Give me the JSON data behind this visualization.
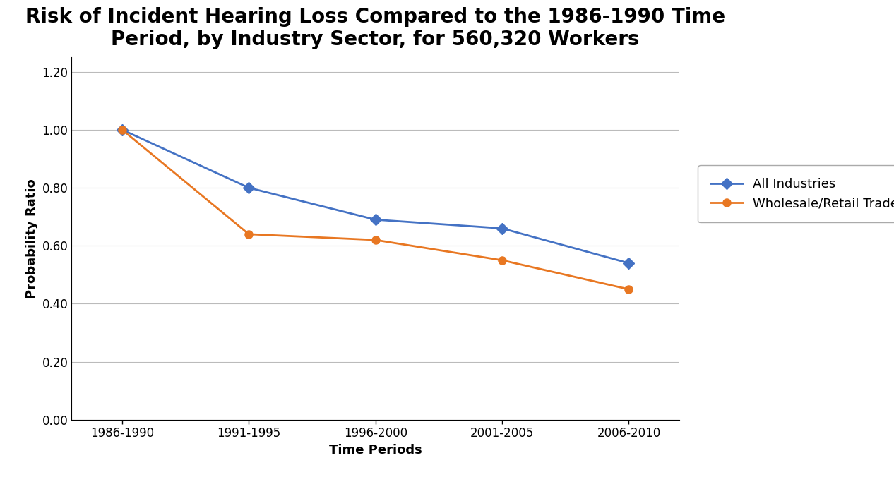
{
  "title": "Risk of Incident Hearing Loss Compared to the 1986-1990 Time\nPeriod, by Industry Sector, for 560,320 Workers",
  "xlabel": "Time Periods",
  "ylabel": "Probability Ratio",
  "x_labels": [
    "1986-1990",
    "1991-1995",
    "1996-2000",
    "2001-2005",
    "2006-2010"
  ],
  "all_industries": [
    1.0,
    0.8,
    0.69,
    0.66,
    0.54
  ],
  "wholesale_retail": [
    1.0,
    0.64,
    0.62,
    0.55,
    0.45
  ],
  "color_all": "#4472C4",
  "color_wholesale": "#E87722",
  "ylim": [
    0.0,
    1.25
  ],
  "yticks": [
    0.0,
    0.2,
    0.4,
    0.6,
    0.8,
    1.0,
    1.2
  ],
  "legend_all": "All Industries",
  "legend_wholesale": "Wholesale/Retail Trade",
  "title_fontsize": 20,
  "axis_label_fontsize": 13,
  "tick_fontsize": 12,
  "legend_fontsize": 13,
  "marker_size": 8,
  "line_width": 2.0,
  "background_color": "#FFFFFF",
  "grid_color": "#BBBBBB"
}
